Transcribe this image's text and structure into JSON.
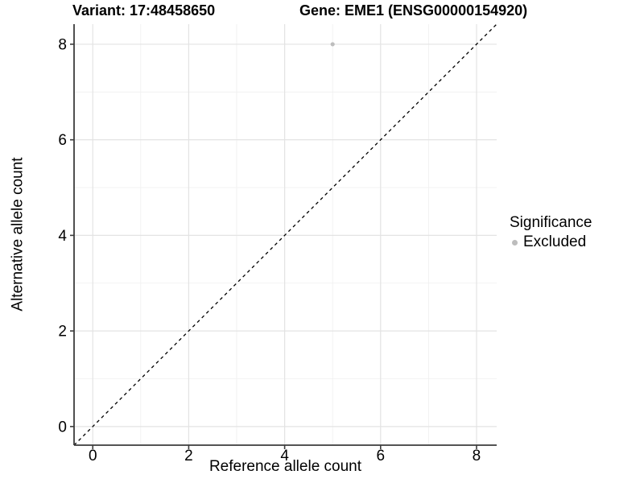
{
  "titles": {
    "left": "Variant: 17:48458650",
    "right": "Gene: EME1 (ENSG00000154920)"
  },
  "chart_data": {
    "type": "scatter",
    "xlabel": "Reference allele count",
    "ylabel": "Alternative allele count",
    "xlim": [
      -0.39,
      8.42
    ],
    "ylim": [
      -0.39,
      8.42
    ],
    "xticks": [
      0,
      2,
      4,
      6,
      8
    ],
    "yticks": [
      0,
      2,
      4,
      6,
      8
    ],
    "xminor": [
      1,
      3,
      5,
      7
    ],
    "yminor": [
      1,
      3,
      5,
      7
    ],
    "grid": "major and minor gridlines on white background",
    "diagonal": {
      "type": "abline",
      "slope": 1,
      "intercept": 0,
      "style": "dashed",
      "color": "#000000"
    },
    "series": [
      {
        "name": "Excluded",
        "color": "#bdbdbd",
        "points": [
          {
            "x": 5,
            "y": 8
          }
        ]
      }
    ],
    "legend": {
      "title": "Significance",
      "position": "right",
      "items": [
        {
          "label": "Excluded",
          "color": "#bdbdbd"
        }
      ]
    }
  },
  "colors": {
    "background": "#ffffff",
    "grid_major": "#e3e3e3",
    "grid_minor": "#efefef",
    "axis_line": "#3c3c3c",
    "tick_mark": "#3c3c3c",
    "text": "#000000",
    "point": "#bdbdbd"
  }
}
